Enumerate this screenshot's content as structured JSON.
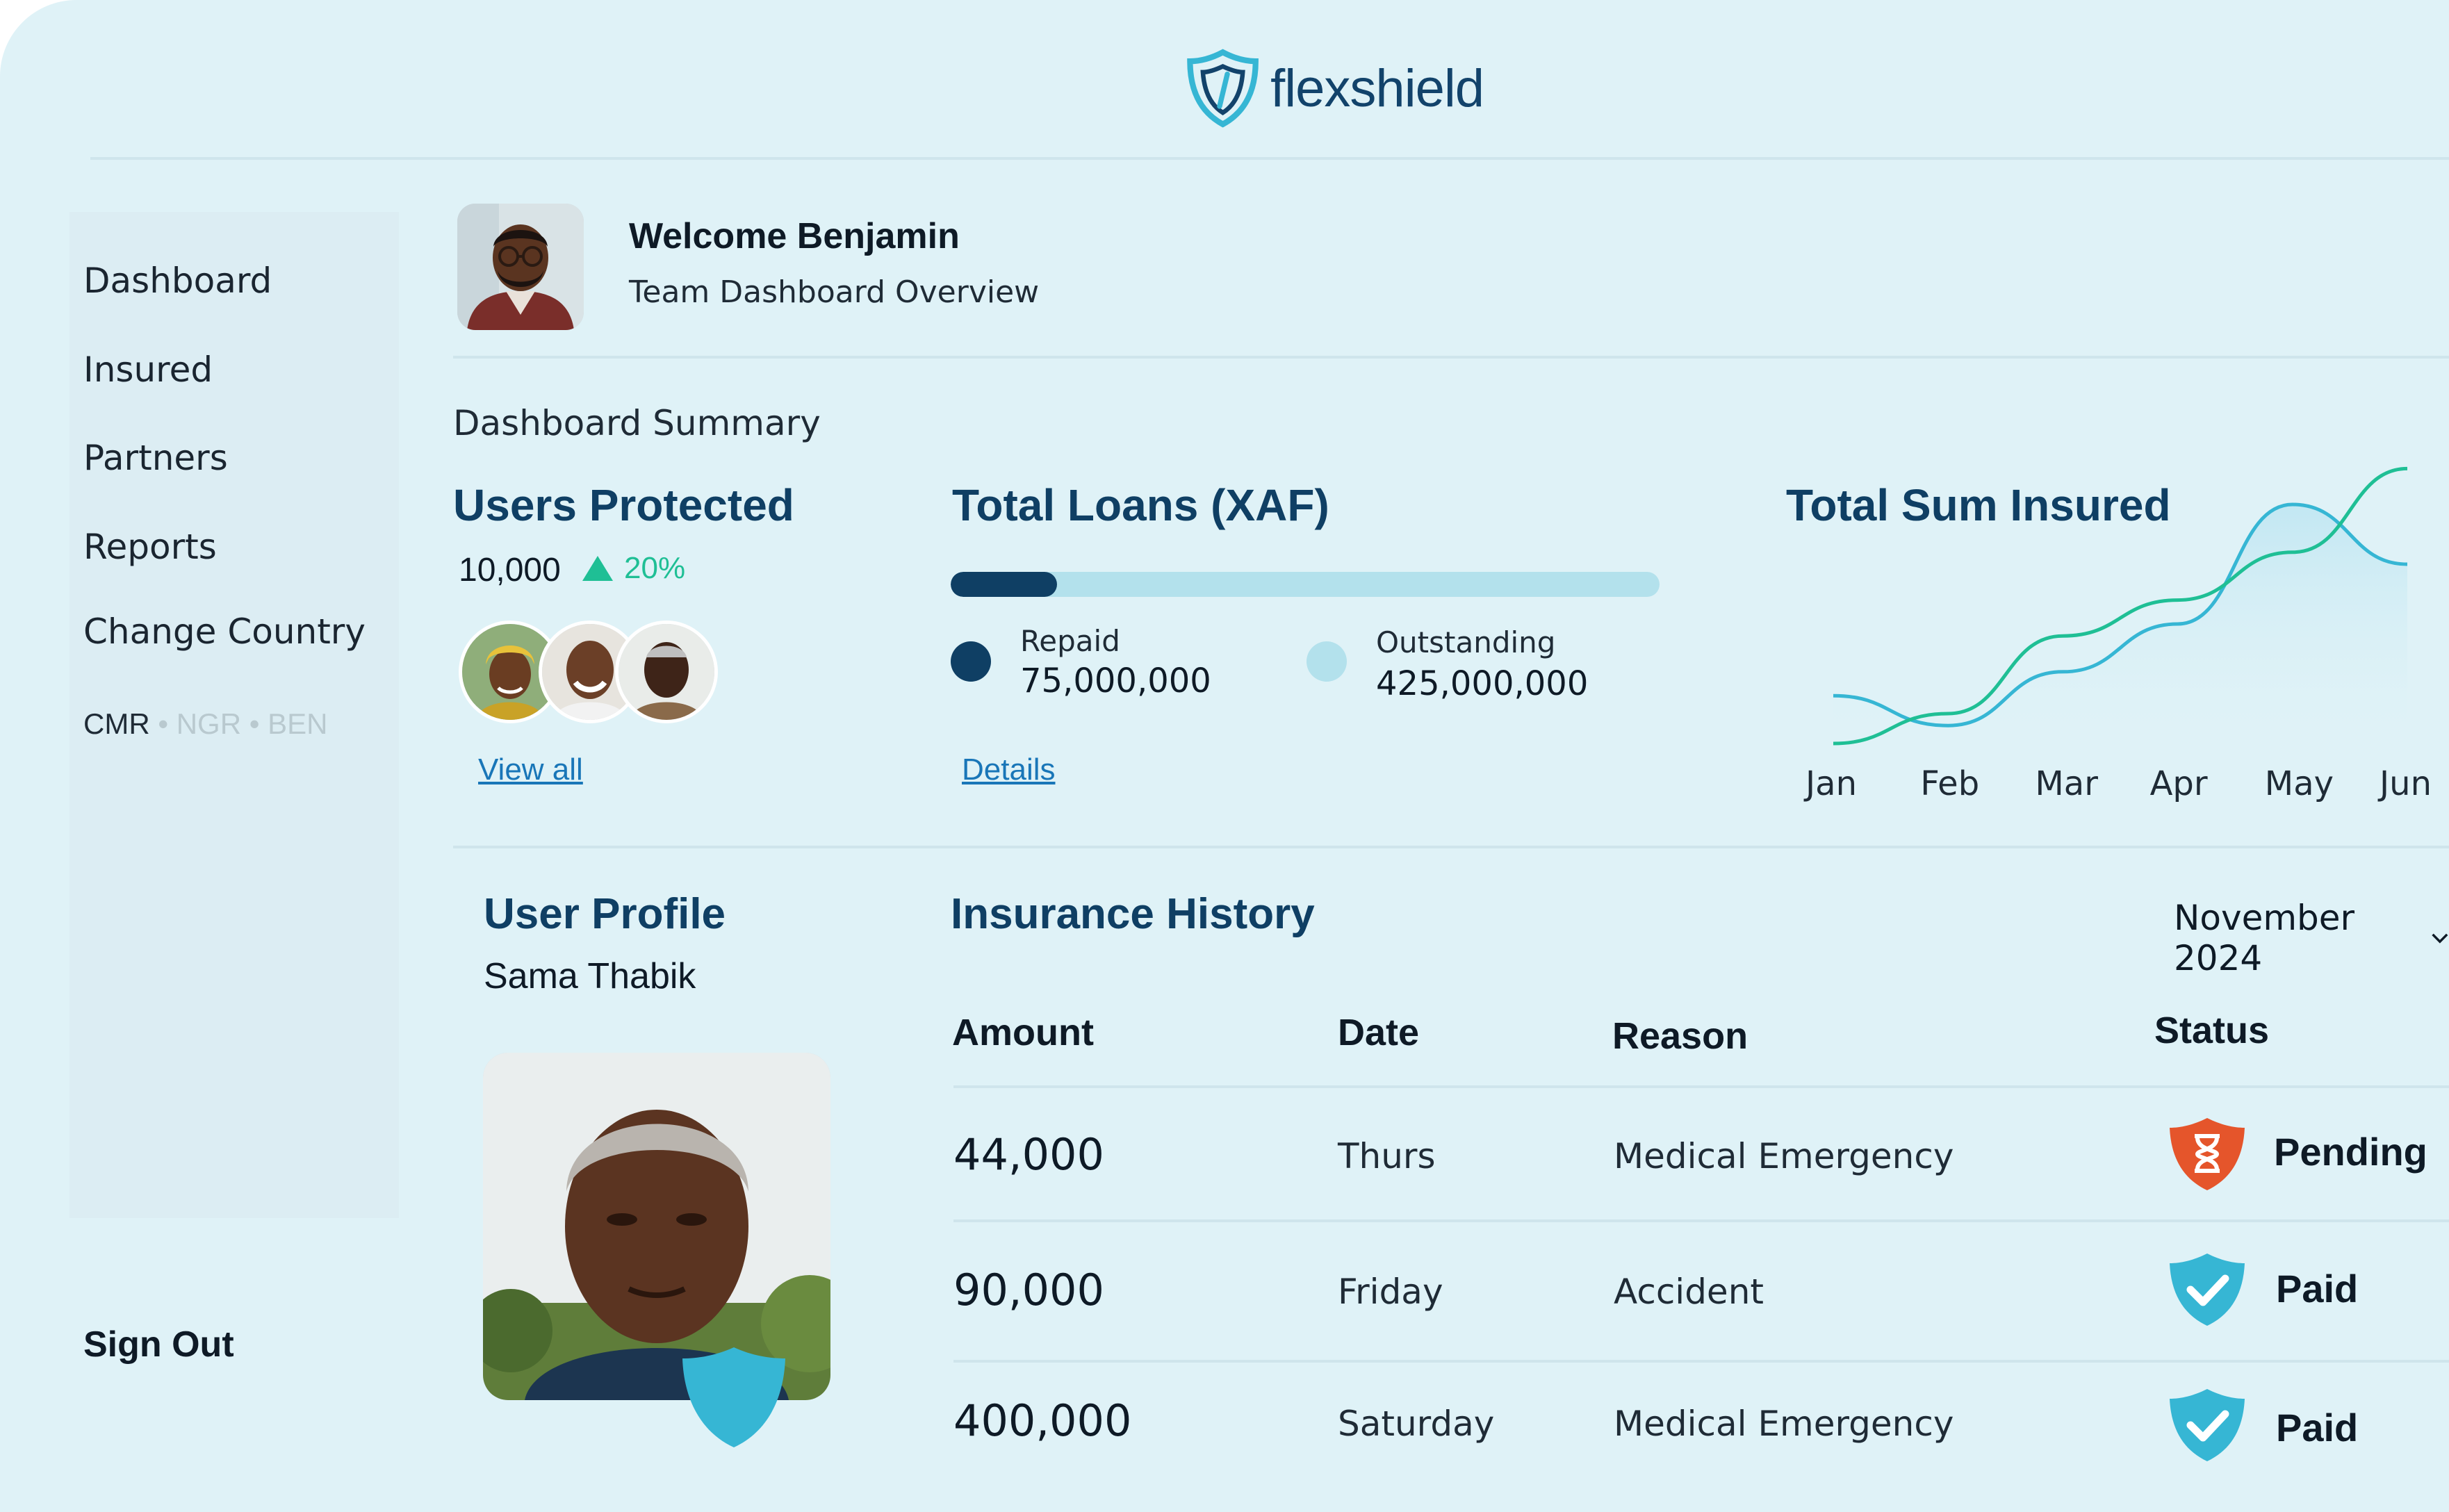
{
  "brand": {
    "name": "flexshield",
    "primary": "#0f3f64",
    "accent": "#36b6d4",
    "success": "#1fbf95",
    "pending": "#e5552b"
  },
  "sidebar": {
    "items": [
      {
        "label": "Dashboard"
      },
      {
        "label": "Insured"
      },
      {
        "label": "Partners"
      },
      {
        "label": "Reports"
      },
      {
        "label": "Change Country"
      }
    ],
    "countries": [
      {
        "code": "CMR",
        "active": true
      },
      {
        "code": "NGR",
        "active": false
      },
      {
        "code": "BEN",
        "active": false
      }
    ],
    "separator": "•",
    "sign_out": "Sign Out"
  },
  "header": {
    "welcome": "Welcome Benjamin",
    "subtitle": "Team Dashboard Overview"
  },
  "summary": {
    "label": "Dashboard Summary",
    "users": {
      "title": "Users Protected",
      "count": "10,000",
      "growth": "20%",
      "link": "View all"
    },
    "loans": {
      "title": "Total Loans (XAF)",
      "repaid_fraction": 0.15,
      "repaid_label": "Repaid",
      "repaid_value": "75,000,000",
      "outstanding_label": "Outstanding",
      "outstanding_value": "425,000,000",
      "link": "Details"
    },
    "insured": {
      "title": "Total Sum Insured"
    }
  },
  "chart_data": {
    "type": "line",
    "title": "Total Sum Insured",
    "categories": [
      "Jan",
      "Feb",
      "Mar",
      "Apr",
      "May",
      "Jun"
    ],
    "series": [
      {
        "values": [
          8,
          3,
          12,
          20,
          40,
          30
        ],
        "color": "#36b6d4"
      },
      {
        "values": [
          0,
          5,
          18,
          24,
          32,
          46
        ],
        "color": "#1fbf95"
      }
    ],
    "ylim": [
      0,
      50
    ],
    "grid": false,
    "xlabel": "",
    "ylabel": ""
  },
  "profile": {
    "title": "User Profile",
    "name": "Sama Thabik"
  },
  "history": {
    "title": "Insurance History",
    "period": "November 2024",
    "columns": [
      "Amount",
      "Date",
      "Reason",
      "Status"
    ],
    "rows": [
      {
        "amount": "44,000",
        "date": "Thurs",
        "reason": "Medical Emergency",
        "status": "Pending",
        "icon": "hourglass-icon"
      },
      {
        "amount": "90,000",
        "date": "Friday",
        "reason": "Accident",
        "status": "Paid",
        "icon": "check-icon"
      },
      {
        "amount": "400,000",
        "date": "Saturday",
        "reason": "Medical Emergency",
        "status": "Paid",
        "icon": "check-icon"
      }
    ]
  }
}
